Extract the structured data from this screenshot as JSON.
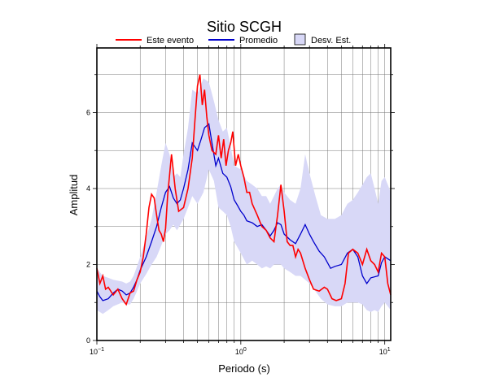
{
  "chart_data": {
    "type": "line",
    "title": "Sitio SCGH",
    "xlabel": "Periodo (s)",
    "ylabel": "Amplitud",
    "x_scale": "log",
    "xlim": [
      0.1,
      11
    ],
    "ylim": [
      0,
      7.7
    ],
    "x_ticks": [
      {
        "value": 0.1,
        "base": "10",
        "exp": "−1"
      },
      {
        "value": 1,
        "base": "10",
        "exp": "0"
      },
      {
        "value": 10,
        "base": "10",
        "exp": "1"
      }
    ],
    "y_ticks": [
      0,
      2,
      4,
      6
    ],
    "grid": true,
    "legend_position": "top",
    "legend": [
      {
        "label": "Este evento",
        "kind": "line",
        "color": "#ff0000"
      },
      {
        "label": "Promedio",
        "kind": "line",
        "color": "#0000cc"
      },
      {
        "label": "Desv. Est.",
        "kind": "band",
        "color": "#d8d8f7"
      }
    ],
    "series": [
      {
        "name": "Este evento",
        "color": "#ff0000",
        "points": [
          [
            0.1,
            1.9
          ],
          [
            0.105,
            1.5
          ],
          [
            0.11,
            1.7
          ],
          [
            0.115,
            1.35
          ],
          [
            0.12,
            1.4
          ],
          [
            0.13,
            1.2
          ],
          [
            0.14,
            1.35
          ],
          [
            0.15,
            1.1
          ],
          [
            0.16,
            0.95
          ],
          [
            0.17,
            1.25
          ],
          [
            0.18,
            1.3
          ],
          [
            0.19,
            1.6
          ],
          [
            0.2,
            1.8
          ],
          [
            0.21,
            2.2
          ],
          [
            0.22,
            2.8
          ],
          [
            0.23,
            3.5
          ],
          [
            0.24,
            3.85
          ],
          [
            0.25,
            3.75
          ],
          [
            0.26,
            3.3
          ],
          [
            0.27,
            2.9
          ],
          [
            0.28,
            2.8
          ],
          [
            0.29,
            2.6
          ],
          [
            0.3,
            2.95
          ],
          [
            0.31,
            3.8
          ],
          [
            0.33,
            4.9
          ],
          [
            0.35,
            4.0
          ],
          [
            0.37,
            3.4
          ],
          [
            0.4,
            3.5
          ],
          [
            0.43,
            4.0
          ],
          [
            0.46,
            4.8
          ],
          [
            0.48,
            5.8
          ],
          [
            0.5,
            6.7
          ],
          [
            0.52,
            7.0
          ],
          [
            0.54,
            6.2
          ],
          [
            0.56,
            6.6
          ],
          [
            0.58,
            5.9
          ],
          [
            0.6,
            5.4
          ],
          [
            0.63,
            5.0
          ],
          [
            0.67,
            4.9
          ],
          [
            0.7,
            5.4
          ],
          [
            0.73,
            4.8
          ],
          [
            0.76,
            5.3
          ],
          [
            0.79,
            4.6
          ],
          [
            0.82,
            5.0
          ],
          [
            0.85,
            5.2
          ],
          [
            0.88,
            5.5
          ],
          [
            0.92,
            4.6
          ],
          [
            0.96,
            4.9
          ],
          [
            1.0,
            4.6
          ],
          [
            1.05,
            4.3
          ],
          [
            1.1,
            3.9
          ],
          [
            1.15,
            3.9
          ],
          [
            1.2,
            3.6
          ],
          [
            1.3,
            3.3
          ],
          [
            1.4,
            3.0
          ],
          [
            1.5,
            2.9
          ],
          [
            1.6,
            2.7
          ],
          [
            1.7,
            2.6
          ],
          [
            1.8,
            3.3
          ],
          [
            1.9,
            4.1
          ],
          [
            2.0,
            3.4
          ],
          [
            2.1,
            2.6
          ],
          [
            2.2,
            2.5
          ],
          [
            2.3,
            2.5
          ],
          [
            2.4,
            2.2
          ],
          [
            2.5,
            2.4
          ],
          [
            2.6,
            2.3
          ],
          [
            2.8,
            1.9
          ],
          [
            3.0,
            1.6
          ],
          [
            3.2,
            1.35
          ],
          [
            3.5,
            1.3
          ],
          [
            3.8,
            1.4
          ],
          [
            4.0,
            1.35
          ],
          [
            4.3,
            1.1
          ],
          [
            4.6,
            1.05
          ],
          [
            5.0,
            1.1
          ],
          [
            5.3,
            1.5
          ],
          [
            5.6,
            2.3
          ],
          [
            6.0,
            2.4
          ],
          [
            6.5,
            2.3
          ],
          [
            7.0,
            2.0
          ],
          [
            7.5,
            2.4
          ],
          [
            8.0,
            2.1
          ],
          [
            8.5,
            2.0
          ],
          [
            9.0,
            1.8
          ],
          [
            9.5,
            2.3
          ],
          [
            10.0,
            2.2
          ],
          [
            10.5,
            1.5
          ],
          [
            11.0,
            1.2
          ]
        ]
      },
      {
        "name": "Promedio",
        "color": "#0000cc",
        "points": [
          [
            0.1,
            1.3
          ],
          [
            0.105,
            1.15
          ],
          [
            0.11,
            1.05
          ],
          [
            0.12,
            1.1
          ],
          [
            0.13,
            1.25
          ],
          [
            0.14,
            1.35
          ],
          [
            0.15,
            1.3
          ],
          [
            0.16,
            1.2
          ],
          [
            0.17,
            1.25
          ],
          [
            0.18,
            1.4
          ],
          [
            0.19,
            1.6
          ],
          [
            0.2,
            1.85
          ],
          [
            0.22,
            2.2
          ],
          [
            0.24,
            2.6
          ],
          [
            0.26,
            3.0
          ],
          [
            0.28,
            3.5
          ],
          [
            0.3,
            3.9
          ],
          [
            0.32,
            4.05
          ],
          [
            0.34,
            3.75
          ],
          [
            0.36,
            3.6
          ],
          [
            0.38,
            3.7
          ],
          [
            0.4,
            4.0
          ],
          [
            0.43,
            4.5
          ],
          [
            0.46,
            5.2
          ],
          [
            0.5,
            5.0
          ],
          [
            0.53,
            5.3
          ],
          [
            0.56,
            5.6
          ],
          [
            0.6,
            5.7
          ],
          [
            0.63,
            5.2
          ],
          [
            0.67,
            4.6
          ],
          [
            0.7,
            4.8
          ],
          [
            0.75,
            4.4
          ],
          [
            0.8,
            4.3
          ],
          [
            0.85,
            4.05
          ],
          [
            0.9,
            3.7
          ],
          [
            0.95,
            3.55
          ],
          [
            1.0,
            3.4
          ],
          [
            1.05,
            3.3
          ],
          [
            1.1,
            3.15
          ],
          [
            1.2,
            3.1
          ],
          [
            1.3,
            3.0
          ],
          [
            1.4,
            3.05
          ],
          [
            1.5,
            2.9
          ],
          [
            1.6,
            2.75
          ],
          [
            1.7,
            2.9
          ],
          [
            1.8,
            3.1
          ],
          [
            1.9,
            3.05
          ],
          [
            2.0,
            2.8
          ],
          [
            2.2,
            2.65
          ],
          [
            2.4,
            2.55
          ],
          [
            2.6,
            2.8
          ],
          [
            2.8,
            3.05
          ],
          [
            3.0,
            2.8
          ],
          [
            3.2,
            2.6
          ],
          [
            3.5,
            2.35
          ],
          [
            3.8,
            2.2
          ],
          [
            4.0,
            2.05
          ],
          [
            4.2,
            1.9
          ],
          [
            4.5,
            1.95
          ],
          [
            5.0,
            2.0
          ],
          [
            5.5,
            2.3
          ],
          [
            6.0,
            2.4
          ],
          [
            6.5,
            2.2
          ],
          [
            7.0,
            1.7
          ],
          [
            7.5,
            1.5
          ],
          [
            8.0,
            1.65
          ],
          [
            9.0,
            1.7
          ],
          [
            9.5,
            2.05
          ],
          [
            10.0,
            2.2
          ],
          [
            11.0,
            2.1
          ]
        ]
      }
    ],
    "band": {
      "name": "Desv. Est.",
      "color": "#d8d8f7",
      "upper": [
        [
          0.1,
          1.9
        ],
        [
          0.11,
          1.7
        ],
        [
          0.12,
          1.65
        ],
        [
          0.13,
          1.6
        ],
        [
          0.15,
          1.55
        ],
        [
          0.16,
          1.5
        ],
        [
          0.17,
          1.55
        ],
        [
          0.18,
          1.7
        ],
        [
          0.19,
          1.95
        ],
        [
          0.2,
          2.2
        ],
        [
          0.22,
          2.7
        ],
        [
          0.24,
          3.2
        ],
        [
          0.26,
          3.9
        ],
        [
          0.28,
          4.6
        ],
        [
          0.3,
          5.2
        ],
        [
          0.32,
          4.9
        ],
        [
          0.34,
          4.3
        ],
        [
          0.36,
          4.4
        ],
        [
          0.38,
          4.3
        ],
        [
          0.4,
          4.9
        ],
        [
          0.43,
          5.6
        ],
        [
          0.46,
          6.6
        ],
        [
          0.5,
          6.5
        ],
        [
          0.55,
          6.9
        ],
        [
          0.6,
          6.8
        ],
        [
          0.65,
          6.3
        ],
        [
          0.7,
          5.8
        ],
        [
          0.75,
          5.5
        ],
        [
          0.8,
          5.6
        ],
        [
          0.85,
          5.1
        ],
        [
          0.9,
          4.6
        ],
        [
          1.0,
          4.5
        ],
        [
          1.1,
          4.2
        ],
        [
          1.2,
          4.1
        ],
        [
          1.3,
          4.0
        ],
        [
          1.4,
          3.8
        ],
        [
          1.5,
          3.8
        ],
        [
          1.6,
          3.6
        ],
        [
          1.7,
          3.8
        ],
        [
          1.8,
          4.0
        ],
        [
          1.9,
          4.1
        ],
        [
          2.0,
          3.9
        ],
        [
          2.2,
          3.7
        ],
        [
          2.4,
          3.6
        ],
        [
          2.6,
          4.0
        ],
        [
          2.8,
          4.9
        ],
        [
          3.0,
          4.4
        ],
        [
          3.3,
          3.8
        ],
        [
          3.6,
          3.3
        ],
        [
          4.0,
          3.2
        ],
        [
          4.5,
          3.2
        ],
        [
          5.0,
          3.3
        ],
        [
          5.5,
          3.6
        ],
        [
          6.0,
          3.7
        ],
        [
          6.5,
          3.9
        ],
        [
          7.0,
          4.1
        ],
        [
          7.5,
          4.3
        ],
        [
          8.0,
          4.4
        ],
        [
          8.5,
          4.0
        ],
        [
          9.0,
          3.6
        ],
        [
          9.5,
          4.2
        ],
        [
          10.0,
          4.3
        ],
        [
          10.5,
          4.1
        ],
        [
          11.0,
          3.9
        ]
      ],
      "lower": [
        [
          0.1,
          0.8
        ],
        [
          0.11,
          0.7
        ],
        [
          0.12,
          0.8
        ],
        [
          0.13,
          0.9
        ],
        [
          0.15,
          1.0
        ],
        [
          0.16,
          0.95
        ],
        [
          0.17,
          0.95
        ],
        [
          0.18,
          1.1
        ],
        [
          0.19,
          1.3
        ],
        [
          0.2,
          1.5
        ],
        [
          0.22,
          1.75
        ],
        [
          0.24,
          2.0
        ],
        [
          0.26,
          2.2
        ],
        [
          0.28,
          2.5
        ],
        [
          0.3,
          2.8
        ],
        [
          0.32,
          2.9
        ],
        [
          0.34,
          3.05
        ],
        [
          0.36,
          2.9
        ],
        [
          0.38,
          3.05
        ],
        [
          0.4,
          3.2
        ],
        [
          0.43,
          3.5
        ],
        [
          0.46,
          3.8
        ],
        [
          0.5,
          3.6
        ],
        [
          0.55,
          3.9
        ],
        [
          0.6,
          4.5
        ],
        [
          0.65,
          4.2
        ],
        [
          0.7,
          3.5
        ],
        [
          0.75,
          3.4
        ],
        [
          0.8,
          3.3
        ],
        [
          0.85,
          3.0
        ],
        [
          0.9,
          2.6
        ],
        [
          1.0,
          2.3
        ],
        [
          1.1,
          2.0
        ],
        [
          1.2,
          2.1
        ],
        [
          1.3,
          2.0
        ],
        [
          1.4,
          1.9
        ],
        [
          1.5,
          1.95
        ],
        [
          1.6,
          1.9
        ],
        [
          1.7,
          2.0
        ],
        [
          1.8,
          2.0
        ],
        [
          1.9,
          2.0
        ],
        [
          2.0,
          1.9
        ],
        [
          2.2,
          1.8
        ],
        [
          2.4,
          1.7
        ],
        [
          2.6,
          1.7
        ],
        [
          2.8,
          1.6
        ],
        [
          3.0,
          1.5
        ],
        [
          3.3,
          1.3
        ],
        [
          3.6,
          1.1
        ],
        [
          4.0,
          0.95
        ],
        [
          4.5,
          0.9
        ],
        [
          5.0,
          0.9
        ],
        [
          5.5,
          1.0
        ],
        [
          6.0,
          1.0
        ],
        [
          6.5,
          1.0
        ],
        [
          7.0,
          0.95
        ],
        [
          7.5,
          0.8
        ],
        [
          8.0,
          0.75
        ],
        [
          8.5,
          0.8
        ],
        [
          9.0,
          0.75
        ],
        [
          9.5,
          0.9
        ],
        [
          10.0,
          1.0
        ],
        [
          10.5,
          0.9
        ],
        [
          11.0,
          0.8
        ]
      ]
    }
  }
}
